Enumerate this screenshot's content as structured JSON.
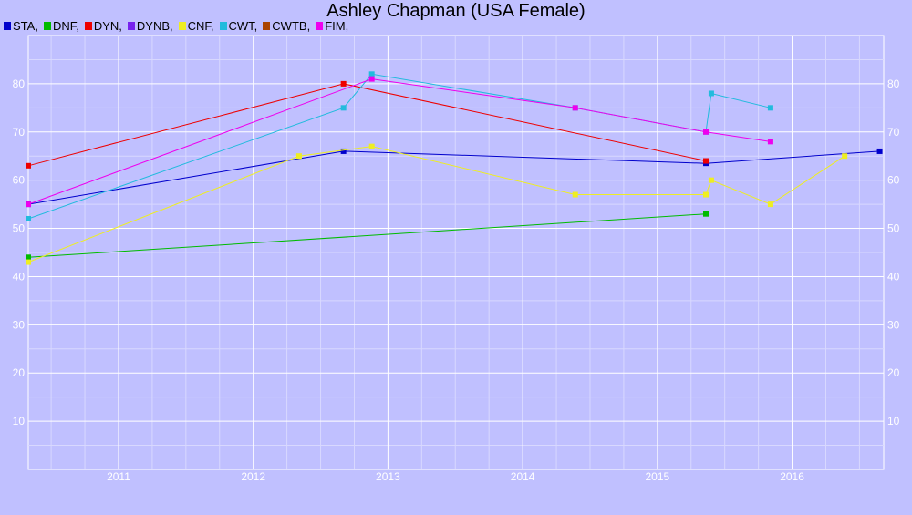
{
  "chart_data": {
    "type": "line",
    "title": "Ashley Chapman (USA Female)",
    "xlabel": "",
    "ylabel": "",
    "xlim": [
      2010.33,
      2016.68
    ],
    "ylim": [
      0,
      90
    ],
    "x_ticks": [
      2011,
      2012,
      2013,
      2014,
      2015,
      2016
    ],
    "y_ticks": [
      10,
      20,
      30,
      40,
      50,
      60,
      70,
      80
    ],
    "grid": true,
    "legend_position": "top-left",
    "legend": [
      "STA,",
      "DNF,",
      "DYN,",
      "DYNB,",
      "CNF,",
      "CWT,",
      "CWTB,",
      "FIM,"
    ],
    "series": [
      {
        "name": "STA",
        "color": "#0000cc",
        "points": [
          [
            2010.33,
            55
          ],
          [
            2012.67,
            66
          ],
          [
            2015.36,
            63.5
          ],
          [
            2016.65,
            66
          ]
        ]
      },
      {
        "name": "DNF",
        "color": "#00bb00",
        "points": [
          [
            2010.33,
            44
          ],
          [
            2015.36,
            53
          ]
        ]
      },
      {
        "name": "DYN",
        "color": "#ee0000",
        "points": [
          [
            2010.33,
            63
          ],
          [
            2012.67,
            80
          ],
          [
            2015.36,
            64
          ]
        ]
      },
      {
        "name": "DYNB",
        "color": "#7722ee",
        "points": []
      },
      {
        "name": "CNF",
        "color": "#eeee22",
        "points": [
          [
            2010.33,
            43
          ],
          [
            2012.34,
            65
          ],
          [
            2012.88,
            67
          ],
          [
            2014.39,
            57
          ],
          [
            2015.36,
            57
          ],
          [
            2015.4,
            60
          ],
          [
            2015.84,
            55
          ],
          [
            2016.39,
            65
          ]
        ]
      },
      {
        "name": "CWT",
        "color": "#22bbdd",
        "points": [
          [
            2010.33,
            52
          ],
          [
            2012.67,
            75
          ],
          [
            2012.88,
            82
          ],
          [
            2014.39,
            75
          ],
          [
            2015.36,
            70
          ],
          [
            2015.4,
            78
          ],
          [
            2015.84,
            75
          ]
        ]
      },
      {
        "name": "CWTB",
        "color": "#aa4400",
        "points": []
      },
      {
        "name": "FIM",
        "color": "#ee00ee",
        "points": [
          [
            2010.33,
            55
          ],
          [
            2012.88,
            81
          ],
          [
            2014.39,
            75
          ],
          [
            2015.36,
            70
          ],
          [
            2015.84,
            68
          ]
        ]
      }
    ]
  }
}
